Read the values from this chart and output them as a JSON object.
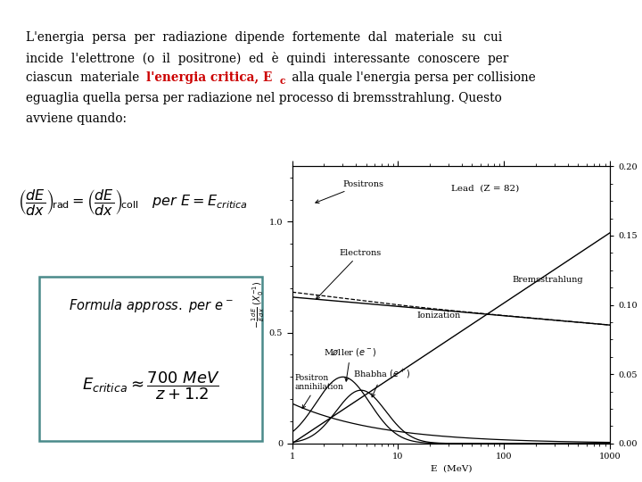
{
  "bg_color": "#ffffff",
  "text_color": "#000000",
  "red_color": "#cc0000",
  "teal_color": "#4a8a8a",
  "fig_w": 7.2,
  "fig_h": 5.4,
  "text_lines": [
    "L'energia  persa  per  radiazione  dipende  fortemente  dal  materiale  su  cui",
    "incide  l'elettrone  (o  il  positrone)  ed  è  quindi  interessante  conoscere  per",
    "ciascun materiale ",
    "l'energia critica, E",
    "c",
    " alla quale l'energia persa per collisione",
    "eguaglia quella persa per radiazione nel processo di bremsstrahlung. Questo",
    "avviene quando:"
  ],
  "font_size_main": 9.8,
  "font_size_eq": 11.5,
  "font_size_box": 10.0,
  "font_size_chart": 7.0
}
